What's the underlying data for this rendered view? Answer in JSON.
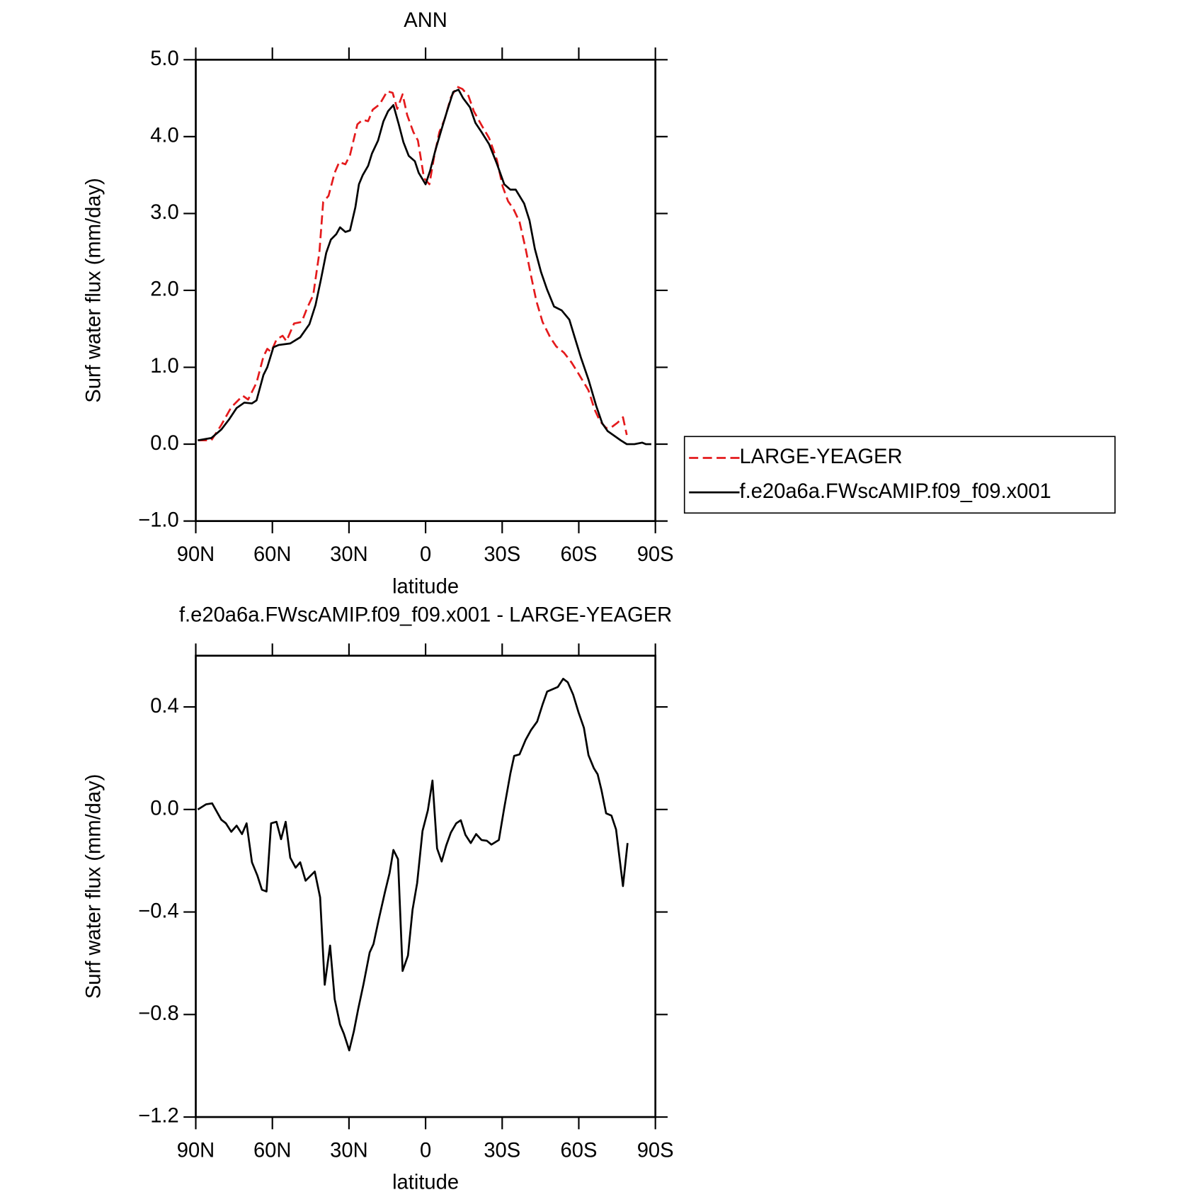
{
  "chart_data": [
    {
      "type": "line",
      "title": "ANN",
      "xlabel": "latitude",
      "ylabel": "Surf water flux (mm/day)",
      "xlim": [
        90,
        -90
      ],
      "xticks": [
        {
          "value": 90,
          "label": "90N"
        },
        {
          "value": 60,
          "label": "60N"
        },
        {
          "value": 30,
          "label": "30N"
        },
        0,
        {
          "value": -30,
          "label": "30S"
        },
        {
          "value": -60,
          "label": "60S"
        },
        {
          "value": -90,
          "label": "90S"
        }
      ],
      "ylim": [
        -1,
        5
      ],
      "yticks": [
        {
          "value": -1,
          "label": "−1.0"
        },
        {
          "value": 0,
          "label": "0.0"
        },
        {
          "value": 1,
          "label": "1.0"
        },
        {
          "value": 2,
          "label": "2.0"
        },
        {
          "value": 3,
          "label": "3.0"
        },
        {
          "value": 4,
          "label": "4.0"
        },
        {
          "value": 5,
          "label": "5.0"
        }
      ],
      "legend": "right",
      "series": [
        {
          "name": "LARGE-YEAGER",
          "color": "#e41a1c",
          "line_style": "dashed",
          "x": [
            89.2,
            83.9,
            80.0,
            76.1,
            71.6,
            69.5,
            66.2,
            63.5,
            62.0,
            60.5,
            58.4,
            56.0,
            54.5,
            51.5,
            48.5,
            46.4,
            44.0,
            41.6,
            40.1,
            38.0,
            35.6,
            33.8,
            31.4,
            29.6,
            26.7,
            24.6,
            22.5,
            20.7,
            18.0,
            15.0,
            12.9,
            11.1,
            9.0,
            7.2,
            4.8,
            3.0,
            0.6,
            -1.5,
            -3.3,
            -5.4,
            -7.5,
            -9.9,
            -12.3,
            -14.4,
            -16.8,
            -18.9,
            -21.9,
            -24.9,
            -27.9,
            -30.2,
            -32.3,
            -34.4,
            -36.8,
            -39.2,
            -41.3,
            -43.4,
            -45.8,
            -48.8,
            -51.2,
            -54.2,
            -57.2,
            -60.2,
            -63.8,
            -66.2,
            -68.3,
            -70.7,
            -72.8,
            -75.2,
            -77.3,
            -78.8
          ],
          "values": [
            0.05,
            0.05,
            0.25,
            0.48,
            0.63,
            0.58,
            0.8,
            1.14,
            1.24,
            1.2,
            1.36,
            1.41,
            1.34,
            1.57,
            1.59,
            1.77,
            1.94,
            2.49,
            3.15,
            3.23,
            3.53,
            3.67,
            3.64,
            3.76,
            4.16,
            4.22,
            4.2,
            4.35,
            4.42,
            4.59,
            4.57,
            4.36,
            4.55,
            4.28,
            4.06,
            3.95,
            3.46,
            3.38,
            3.73,
            4.06,
            4.23,
            4.51,
            4.65,
            4.62,
            4.53,
            4.33,
            4.15,
            3.98,
            3.7,
            3.35,
            3.16,
            3.06,
            2.89,
            2.54,
            2.19,
            1.86,
            1.59,
            1.39,
            1.27,
            1.19,
            1.06,
            0.9,
            0.7,
            0.45,
            0.3,
            0.21,
            0.22,
            0.28,
            0.35,
            0.12
          ]
        },
        {
          "name": "f.e20a6a.FWscAMIP.f09_f09.x001",
          "color": "#000000",
          "line_style": "solid",
          "x": [
            89.2,
            83.9,
            80.0,
            77.0,
            74.0,
            71.0,
            68.0,
            66.2,
            63.5,
            62.0,
            59.6,
            57.5,
            53.0,
            49.1,
            45.5,
            43.1,
            41.0,
            38.9,
            37.1,
            35.0,
            33.5,
            31.4,
            29.6,
            27.5,
            26.1,
            24.6,
            22.5,
            21.0,
            18.6,
            16.5,
            14.7,
            12.6,
            10.5,
            8.7,
            6.6,
            4.2,
            2.7,
            0,
            -1.8,
            -3.9,
            -6.3,
            -8.4,
            -10.8,
            -12.9,
            -14.7,
            -17.4,
            -19.5,
            -21.9,
            -24.9,
            -27.9,
            -30.8,
            -33.2,
            -35.3,
            -38.6,
            -40.7,
            -42.8,
            -45.2,
            -47.6,
            -50.3,
            -53.3,
            -56.3,
            -58.4,
            -60.8,
            -63.8,
            -66.8,
            -69.2,
            -71.3,
            -74.3,
            -76.4,
            -78.8,
            -81.8,
            -84.8,
            -86.3,
            -88.4
          ],
          "values": [
            0.05,
            0.08,
            0.19,
            0.32,
            0.47,
            0.54,
            0.53,
            0.57,
            0.9,
            1.0,
            1.26,
            1.29,
            1.31,
            1.39,
            1.56,
            1.81,
            2.14,
            2.49,
            2.66,
            2.73,
            2.82,
            2.76,
            2.78,
            3.08,
            3.38,
            3.5,
            3.62,
            3.78,
            3.95,
            4.2,
            4.33,
            4.41,
            4.16,
            3.93,
            3.75,
            3.68,
            3.53,
            3.38,
            3.56,
            3.83,
            4.1,
            4.33,
            4.58,
            4.61,
            4.5,
            4.38,
            4.18,
            4.06,
            3.9,
            3.65,
            3.38,
            3.31,
            3.31,
            3.13,
            2.91,
            2.54,
            2.24,
            2.01,
            1.79,
            1.74,
            1.62,
            1.39,
            1.13,
            0.84,
            0.5,
            0.27,
            0.17,
            0.1,
            0.05,
            0.0,
            0.0,
            0.02,
            0.0,
            0.0
          ]
        }
      ]
    },
    {
      "type": "line",
      "title": "f.e20a6a.FWscAMIP.f09_f09.x001 - LARGE-YEAGER",
      "xlabel": "latitude",
      "ylabel": "Surf water flux (mm/day)",
      "xlim": [
        90,
        -90
      ],
      "xticks": [
        {
          "value": 90,
          "label": "90N"
        },
        {
          "value": 60,
          "label": "60N"
        },
        {
          "value": 30,
          "label": "30N"
        },
        0,
        {
          "value": -30,
          "label": "30S"
        },
        {
          "value": -60,
          "label": "60S"
        },
        {
          "value": -90,
          "label": "90S"
        }
      ],
      "ylim": [
        -1.2,
        0.6
      ],
      "yticks": [
        {
          "value": -1.2,
          "label": "−1.2"
        },
        {
          "value": -0.8,
          "label": "−0.8"
        },
        {
          "value": -0.4,
          "label": "−0.4"
        },
        {
          "value": 0,
          "label": "0.0"
        },
        0.4
      ],
      "series": [
        {
          "color": "#000000",
          "line_style": "solid",
          "x": [
            89.2,
            86.0,
            83.6,
            80.0,
            78.2,
            76.1,
            74.0,
            71.9,
            70.1,
            68.0,
            65.9,
            64.1,
            62.3,
            60.5,
            58.4,
            56.6,
            54.8,
            53.0,
            50.9,
            49.1,
            47.0,
            43.4,
            41.3,
            39.5,
            37.4,
            35.6,
            33.5,
            32.0,
            29.9,
            28.1,
            26.4,
            24.3,
            21.9,
            20.4,
            18.3,
            15.9,
            14.1,
            12.6,
            10.8,
            9.0,
            6.9,
            5.1,
            3.3,
            1.2,
            -0.9,
            -2.7,
            -4.5,
            -6.3,
            -8.1,
            -9.9,
            -12.0,
            -13.8,
            -15.6,
            -17.7,
            -19.8,
            -21.9,
            -24.0,
            -25.8,
            -28.7,
            -30.8,
            -33.2,
            -34.7,
            -36.8,
            -39.2,
            -41.3,
            -43.7,
            -45.8,
            -47.6,
            -49.7,
            -51.8,
            -53.9,
            -55.7,
            -57.8,
            -59.9,
            -62.0,
            -63.8,
            -65.9,
            -67.4,
            -68.9,
            -70.7,
            -72.8,
            -74.6,
            -77.3,
            -79.1
          ],
          "values": [
            0.0,
            0.02,
            0.024,
            -0.04,
            -0.054,
            -0.087,
            -0.063,
            -0.096,
            -0.054,
            -0.206,
            -0.257,
            -0.313,
            -0.32,
            -0.054,
            -0.048,
            -0.116,
            -0.048,
            -0.188,
            -0.227,
            -0.206,
            -0.278,
            -0.242,
            -0.343,
            -0.684,
            -0.531,
            -0.74,
            -0.839,
            -0.875,
            -0.94,
            -0.866,
            -0.779,
            -0.681,
            -0.558,
            -0.525,
            -0.427,
            -0.322,
            -0.248,
            -0.158,
            -0.194,
            -0.63,
            -0.57,
            -0.391,
            -0.287,
            -0.084,
            -0.003,
            0.113,
            -0.152,
            -0.203,
            -0.14,
            -0.09,
            -0.054,
            -0.042,
            -0.099,
            -0.131,
            -0.096,
            -0.119,
            -0.122,
            -0.137,
            -0.119,
            0.006,
            0.14,
            0.209,
            0.215,
            0.272,
            0.31,
            0.343,
            0.409,
            0.46,
            0.469,
            0.478,
            0.51,
            0.496,
            0.448,
            0.379,
            0.319,
            0.212,
            0.161,
            0.137,
            0.075,
            -0.015,
            -0.024,
            -0.078,
            -0.299,
            -0.131
          ]
        }
      ]
    }
  ]
}
